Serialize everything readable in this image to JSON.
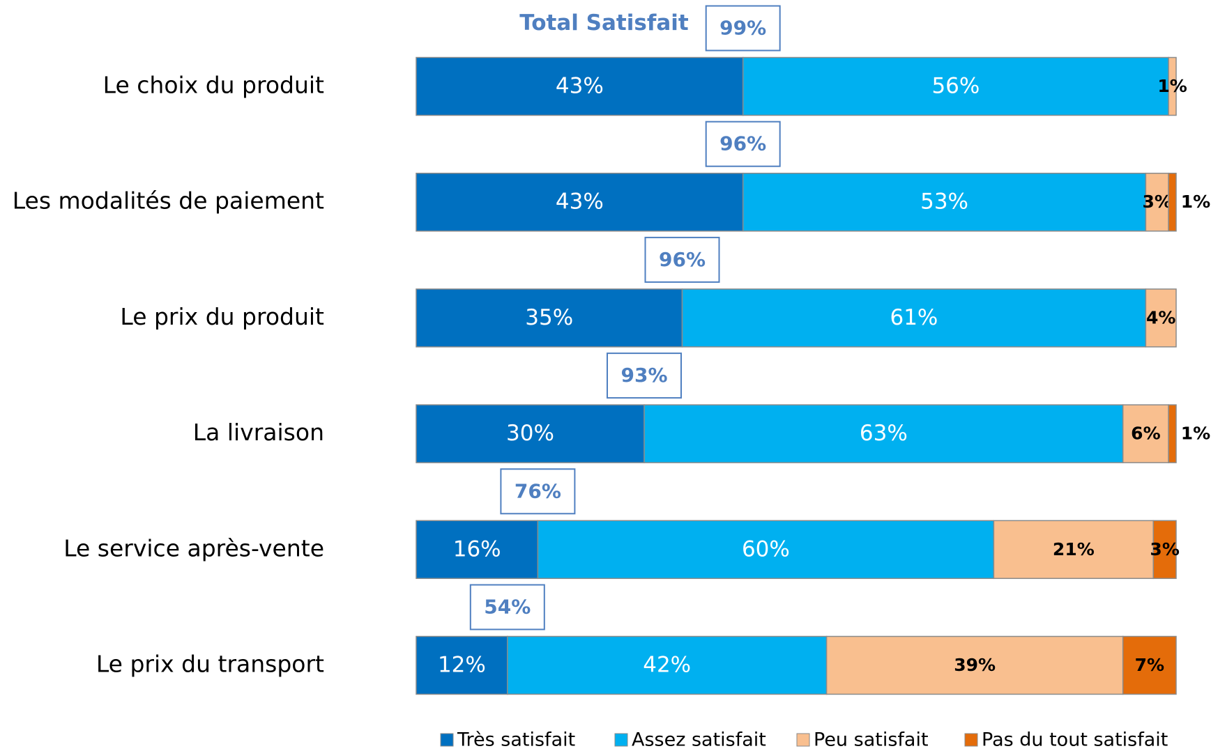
{
  "chart_data": {
    "type": "stacked-bar",
    "orientation": "horizontal",
    "categories": [
      "Le choix du produit",
      "Les modalités de paiement",
      "Le prix du produit",
      "La livraison",
      "Le service après-vente",
      "Le prix du transport"
    ],
    "xlim": [
      0,
      100
    ],
    "series": [
      {
        "name": "Très satisfait",
        "color": "#0070C0",
        "values": [
          43,
          43,
          35,
          30,
          16,
          12
        ],
        "value_labels": [
          "43%",
          "43%",
          "35%",
          "30%",
          "16%",
          "12%"
        ]
      },
      {
        "name": "Assez satisfait",
        "color": "#00B0F0",
        "values": [
          56,
          53,
          61,
          63,
          60,
          42
        ],
        "value_labels": [
          "56%",
          "53%",
          "61%",
          "63%",
          "60%",
          "42%"
        ]
      },
      {
        "name": "Peu satisfait",
        "color": "#F9BF8F",
        "values": [
          1,
          3,
          4,
          6,
          21,
          39
        ],
        "value_labels": [
          "1%",
          "3%",
          "4%",
          "6%",
          "21%",
          "39%"
        ]
      },
      {
        "name": "Pas du tout satisfait",
        "color": "#E46C0A",
        "values": [
          null,
          1,
          null,
          1,
          3,
          7
        ],
        "value_labels": [
          null,
          "1%",
          null,
          "1%",
          "3%",
          "7%"
        ]
      }
    ],
    "totals": {
      "name": "Total Satisfait",
      "color": "#4F7FC0",
      "values": [
        99,
        96,
        96,
        93,
        76,
        54
      ],
      "value_labels": [
        "99%",
        "96%",
        "96%",
        "93%",
        "76%",
        "54%"
      ]
    },
    "legend": "bottom"
  }
}
